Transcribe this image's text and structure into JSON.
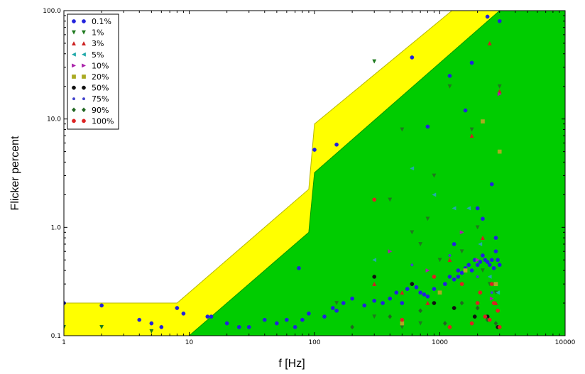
{
  "chart_data": {
    "type": "scatter",
    "xlabel": "f [Hz]",
    "ylabel": "Flicker percent",
    "x_scale": "log",
    "y_scale": "log",
    "xlim": [
      1,
      10000
    ],
    "ylim": [
      0.1,
      100
    ],
    "x_ticks": [
      {
        "value": 1,
        "label": "1"
      },
      {
        "value": 10,
        "label": "10"
      },
      {
        "value": 100,
        "label": "100"
      },
      {
        "value": 1000,
        "label": "1000"
      },
      {
        "value": 10000,
        "label": "10000"
      }
    ],
    "y_ticks": [
      {
        "value": 0.1,
        "label": "0.1"
      },
      {
        "value": 1,
        "label": "1.0"
      },
      {
        "value": 10,
        "label": "10.0"
      },
      {
        "value": 100,
        "label": "100.0"
      }
    ],
    "grid": false,
    "legend_position": "top-left",
    "regions": [
      {
        "color": "#ffff00",
        "upper_boundary": [
          [
            1,
            0.2
          ],
          [
            8,
            0.2
          ],
          [
            90,
            2.25
          ],
          [
            100,
            9.0
          ],
          [
            1250,
            100
          ]
        ],
        "lower_boundary": [
          [
            1,
            0.1
          ],
          [
            10,
            0.1
          ],
          [
            90,
            0.9
          ],
          [
            100,
            3.2
          ],
          [
            3000,
            100
          ]
        ]
      },
      {
        "color": "#00cc00",
        "upper_boundary": [
          [
            10,
            0.1
          ],
          [
            90,
            0.9
          ],
          [
            100,
            3.2
          ],
          [
            3000,
            100
          ],
          [
            10000,
            100
          ]
        ]
      }
    ],
    "series": [
      {
        "name": "0.1%",
        "marker": "circle",
        "color": "#2222dd",
        "x": [
          1,
          2,
          4,
          5,
          6,
          8,
          9,
          14,
          15,
          20,
          25,
          30,
          40,
          50,
          60,
          70,
          75,
          80,
          90,
          100,
          120,
          140,
          150,
          170,
          200,
          250,
          300,
          350,
          400,
          450,
          500,
          550,
          600,
          650,
          700,
          750,
          800,
          900,
          1000,
          1100,
          1200,
          1300,
          1400,
          1500,
          1600,
          1700,
          1800,
          1900,
          2000,
          2100,
          2200,
          2300,
          2400,
          2500,
          2600,
          2700,
          2800,
          2900,
          3000,
          1200,
          1800,
          1600,
          2400,
          600,
          800,
          1300,
          2000,
          2200,
          2600,
          2800,
          1400,
          3000
        ],
        "y": [
          0.2,
          0.19,
          0.14,
          0.13,
          0.12,
          0.18,
          0.16,
          0.15,
          0.15,
          0.13,
          0.12,
          0.12,
          0.14,
          0.13,
          0.14,
          0.12,
          0.42,
          0.14,
          0.16,
          5.2,
          0.15,
          0.18,
          0.17,
          0.2,
          0.22,
          0.19,
          0.21,
          0.2,
          0.22,
          0.25,
          0.2,
          0.27,
          0.3,
          0.28,
          0.25,
          0.24,
          0.23,
          0.27,
          0.25,
          0.3,
          0.35,
          0.33,
          0.35,
          0.38,
          0.42,
          0.45,
          0.4,
          0.5,
          0.45,
          0.48,
          0.55,
          0.5,
          0.48,
          0.45,
          0.5,
          0.42,
          0.6,
          0.5,
          0.45,
          25,
          33,
          12,
          88,
          37,
          8.5,
          0.7,
          1.5,
          1.2,
          2.5,
          0.8,
          0.4,
          80
        ],
        "extra": {
          "x": [
            150
          ],
          "y": [
            5.8
          ]
        }
      },
      {
        "name": "1%",
        "marker": "triangle-down",
        "color": "#1f7a1f",
        "x": [
          1,
          2,
          5,
          150,
          300,
          400,
          500,
          600,
          700,
          800,
          900,
          1000,
          1200,
          1500,
          1800,
          2000,
          2200,
          2500,
          2800,
          3000,
          300,
          500,
          700
        ],
        "y": [
          0.12,
          0.12,
          0.11,
          0.2,
          34,
          1.8,
          8.0,
          0.9,
          0.7,
          1.2,
          3.0,
          0.5,
          20,
          0.6,
          8.0,
          1.0,
          0.4,
          0.3,
          0.25,
          20,
          0.15,
          0.12,
          0.13
        ]
      },
      {
        "name": "3%",
        "marker": "triangle-up",
        "color": "#cc2222",
        "x": [
          300,
          500,
          800,
          1200,
          1800,
          2200,
          2500,
          2800,
          3000
        ],
        "y": [
          0.3,
          0.25,
          0.2,
          0.5,
          7.0,
          0.8,
          50,
          0.2,
          18
        ]
      },
      {
        "name": "5%",
        "marker": "triangle-left",
        "color": "#22aaaa",
        "x": [
          300,
          600,
          900,
          1300,
          1700,
          2100,
          2500,
          2900
        ],
        "y": [
          0.5,
          3.5,
          2.0,
          1.5,
          1.5,
          0.7,
          0.35,
          0.25
        ]
      },
      {
        "name": "10%",
        "marker": "triangle-right",
        "color": "#aa22aa",
        "x": [
          400,
          800,
          1500,
          2000,
          2600,
          3000
        ],
        "y": [
          0.6,
          0.4,
          0.9,
          0.5,
          0.22,
          17
        ]
      },
      {
        "name": "20%",
        "marker": "square",
        "color": "#aaaa22",
        "x": [
          500,
          1000,
          1600,
          2200,
          2800,
          3000
        ],
        "y": [
          0.13,
          0.25,
          0.4,
          9.5,
          0.3,
          5.0
        ]
      },
      {
        "name": "50%",
        "marker": "circle",
        "color": "#111111",
        "x": [
          300,
          600,
          900,
          1300,
          1900,
          2400,
          2900
        ],
        "y": [
          0.35,
          0.3,
          0.2,
          0.18,
          0.15,
          0.15,
          0.12
        ]
      },
      {
        "name": "75%",
        "marker": "star",
        "color": "#4444cc",
        "x": [
          600,
          1200,
          2000,
          2600
        ],
        "y": [
          0.45,
          0.55,
          0.35,
          0.25
        ]
      },
      {
        "name": "90%",
        "marker": "diamond",
        "color": "#226622",
        "x": [
          200,
          400,
          700,
          1100,
          1500,
          2000,
          2400,
          2800
        ],
        "y": [
          0.12,
          0.15,
          0.17,
          0.13,
          0.2,
          0.18,
          0.14,
          0.13
        ]
      },
      {
        "name": "100%",
        "marker": "circle",
        "color": "#dd2222",
        "x": [
          300,
          500,
          900,
          1500,
          1800,
          2100,
          2300,
          2500,
          2700,
          2900,
          1200,
          2000,
          2600,
          3000
        ],
        "y": [
          1.8,
          0.14,
          0.35,
          0.3,
          0.13,
          0.25,
          0.15,
          0.14,
          0.2,
          0.17,
          0.12,
          0.2,
          0.3,
          0.12
        ]
      }
    ]
  }
}
